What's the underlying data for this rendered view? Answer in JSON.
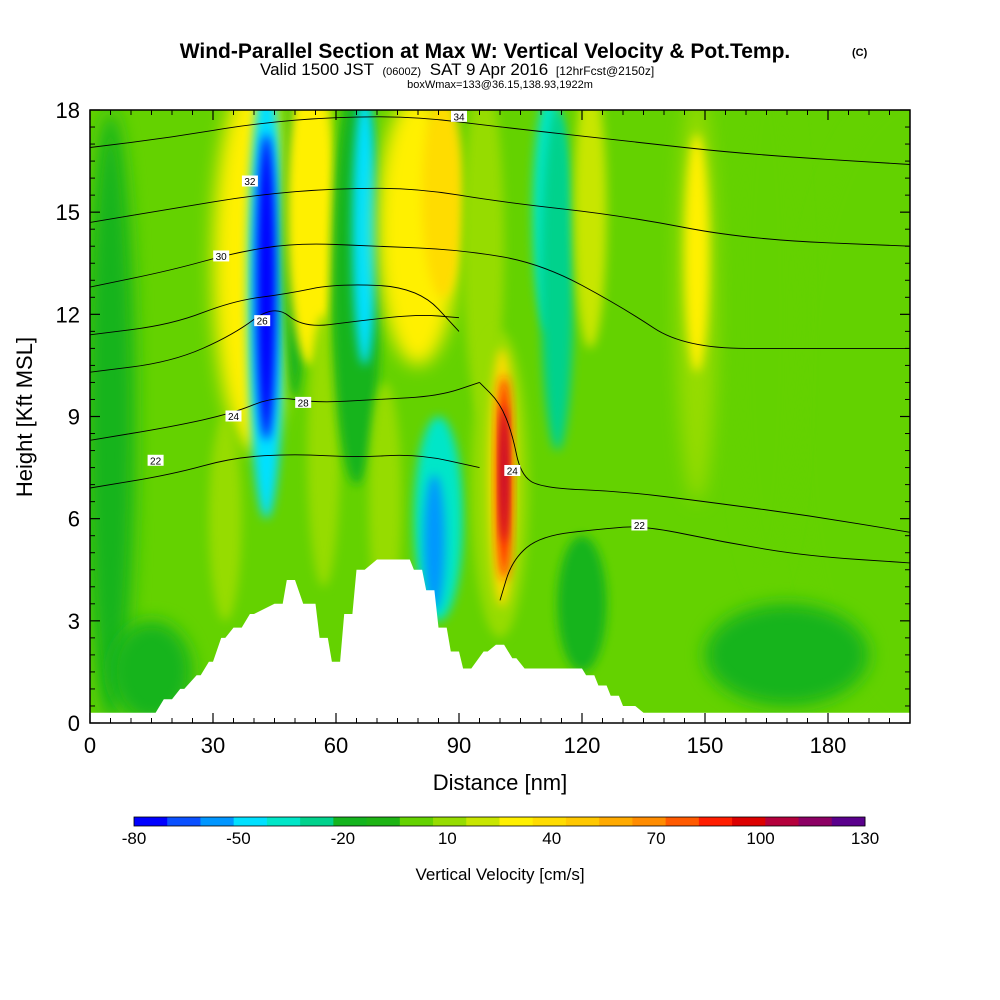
{
  "header": {
    "title": "Wind-Parallel Section at Max W: Vertical Velocity & Pot.Temp.",
    "title_mark": "(C)",
    "valid_prefix": "Valid 1500 JST",
    "valid_zulu": "(0600Z)",
    "valid_date": "SAT 9 Apr 2016",
    "forecast_note": "[12hrFcst@2150z]",
    "box_info": "boxWmax=133@36.15,138.93,1922m"
  },
  "chart_data": {
    "type": "heatmap",
    "xlabel": "Distance [nm]",
    "ylabel": "Height [Kft MSL]",
    "xlim": [
      0,
      200
    ],
    "ylim": [
      0,
      18
    ],
    "xticks": [
      0,
      30,
      60,
      90,
      120,
      150,
      180
    ],
    "yticks": [
      0,
      3,
      6,
      9,
      12,
      15,
      18
    ],
    "colorbar": {
      "label": "Vertical Velocity [cm/s]",
      "tick_labels": [
        "-80",
        "-50",
        "-20",
        "10",
        "40",
        "70",
        "100",
        "130"
      ],
      "levels": [
        -80,
        -70,
        -60,
        -50,
        -40,
        -30,
        -20,
        -10,
        0,
        10,
        20,
        30,
        40,
        50,
        60,
        70,
        80,
        90,
        100,
        110,
        120,
        130
      ],
      "colors": [
        "#0000ff",
        "#0a50ff",
        "#0096ff",
        "#00e0ff",
        "#00e6c8",
        "#00d28c",
        "#14b41e",
        "#1eb414",
        "#64d200",
        "#96dc00",
        "#c8e600",
        "#fff000",
        "#ffdc00",
        "#ffc800",
        "#ffaa00",
        "#ff8c00",
        "#ff5a00",
        "#ff1e00",
        "#dc0000",
        "#b4003c",
        "#8c0064",
        "#5a008c"
      ]
    },
    "field_features": [
      {
        "name": "downdraft",
        "x": 43,
        "y_range": [
          8,
          17.5
        ],
        "w_min": -80
      },
      {
        "name": "updraft",
        "x": 101,
        "y_range": [
          3.5,
          10.5
        ],
        "w_max": 133
      },
      {
        "name": "downdraft",
        "x": 85,
        "y_range": [
          3.5,
          8
        ],
        "w_min": -50
      },
      {
        "name": "downdraft",
        "x": 114,
        "y_range": [
          10,
          18
        ],
        "w_min": -40
      }
    ],
    "terrain_kft": {
      "x": [
        0,
        16,
        18,
        20,
        22,
        23,
        26,
        27,
        29,
        30,
        32,
        33,
        35,
        37,
        39,
        40,
        45,
        47,
        48,
        50,
        52,
        55,
        56,
        58,
        59,
        61,
        62,
        64,
        65,
        67,
        70,
        78,
        79,
        81,
        82,
        84,
        85,
        87,
        88,
        90,
        91,
        93,
        96,
        97,
        99,
        101,
        103,
        104,
        106,
        108,
        110,
        120,
        121,
        123,
        124,
        126,
        127,
        129,
        130,
        133,
        135,
        200
      ],
      "height": [
        0.3,
        0.3,
        0.7,
        0.7,
        1.0,
        1.0,
        1.4,
        1.4,
        1.8,
        1.8,
        2.5,
        2.5,
        2.8,
        2.8,
        3.2,
        3.2,
        3.5,
        3.5,
        4.2,
        4.2,
        3.5,
        3.5,
        2.5,
        2.5,
        1.8,
        1.8,
        3.2,
        3.2,
        4.5,
        4.5,
        4.8,
        4.8,
        4.5,
        4.5,
        3.9,
        3.9,
        2.8,
        2.8,
        2.1,
        2.1,
        1.6,
        1.6,
        2.1,
        2.1,
        2.3,
        2.3,
        1.9,
        1.9,
        1.6,
        1.6,
        1.6,
        1.6,
        1.4,
        1.4,
        1.1,
        1.1,
        0.8,
        0.8,
        0.5,
        0.5,
        0.3,
        0.3
      ]
    },
    "theta_contours": [
      {
        "label": "22",
        "pts": [
          [
            0,
            6.9
          ],
          [
            20,
            7.3
          ],
          [
            35,
            7.8
          ],
          [
            50,
            7.9
          ],
          [
            65,
            7.8
          ],
          [
            80,
            7.9
          ],
          [
            95,
            7.5
          ]
        ],
        "label_at": [
          16,
          7.7
        ]
      },
      {
        "label": "24",
        "pts": [
          [
            0,
            8.3
          ],
          [
            20,
            8.7
          ],
          [
            35,
            9.1
          ],
          [
            45,
            9.6
          ],
          [
            55,
            9.4
          ],
          [
            70,
            9.5
          ],
          [
            85,
            9.6
          ],
          [
            95,
            10.0
          ]
        ],
        "label_at": [
          35,
          9.0
        ]
      },
      {
        "label": "26",
        "pts": [
          [
            0,
            10.3
          ],
          [
            20,
            10.6
          ],
          [
            35,
            11.4
          ],
          [
            45,
            12.3
          ],
          [
            52,
            11.6
          ],
          [
            65,
            11.8
          ],
          [
            80,
            12.0
          ],
          [
            90,
            11.9
          ]
        ],
        "label_at": [
          42,
          11.8
        ]
      },
      {
        "label": "28",
        "pts": [
          [
            0,
            11.4
          ],
          [
            20,
            11.7
          ],
          [
            35,
            12.4
          ],
          [
            48,
            12.6
          ],
          [
            60,
            12.9
          ],
          [
            80,
            12.8
          ],
          [
            90,
            11.5
          ]
        ],
        "label_at": [
          52,
          9.4
        ]
      },
      {
        "label": "30",
        "pts": [
          [
            0,
            12.8
          ],
          [
            20,
            13.3
          ],
          [
            35,
            13.8
          ],
          [
            50,
            14.1
          ],
          [
            70,
            14.0
          ],
          [
            90,
            13.9
          ],
          [
            110,
            13.5
          ],
          [
            130,
            12.2
          ],
          [
            145,
            11.0
          ],
          [
            175,
            11.0
          ],
          [
            200,
            11.0
          ]
        ],
        "label_at": [
          32,
          13.7
        ]
      },
      {
        "label": "32",
        "pts": [
          [
            0,
            14.7
          ],
          [
            20,
            15.1
          ],
          [
            40,
            15.5
          ],
          [
            60,
            15.7
          ],
          [
            80,
            15.7
          ],
          [
            100,
            15.3
          ],
          [
            130,
            14.9
          ],
          [
            160,
            14.2
          ],
          [
            200,
            14.0
          ]
        ],
        "label_at": [
          39,
          15.9
        ]
      },
      {
        "label": "34",
        "pts": [
          [
            0,
            16.9
          ],
          [
            20,
            17.2
          ],
          [
            40,
            17.6
          ],
          [
            60,
            17.8
          ],
          [
            80,
            17.8
          ],
          [
            100,
            17.5
          ],
          [
            130,
            17.1
          ],
          [
            160,
            16.7
          ],
          [
            200,
            16.4
          ]
        ],
        "label_at": [
          90,
          17.8
        ]
      },
      {
        "label": "24",
        "pts": [
          [
            95,
            10.0
          ],
          [
            100,
            9.4
          ],
          [
            103,
            8.5
          ],
          [
            105,
            7.3
          ],
          [
            110,
            6.9
          ],
          [
            130,
            6.8
          ],
          [
            150,
            6.5
          ],
          [
            175,
            6.1
          ],
          [
            200,
            5.6
          ]
        ],
        "label_at": [
          103,
          7.4
        ]
      },
      {
        "label": "22",
        "pts": [
          [
            100,
            3.6
          ],
          [
            103,
            4.8
          ],
          [
            110,
            5.5
          ],
          [
            125,
            5.7
          ],
          [
            135,
            5.8
          ],
          [
            155,
            5.3
          ],
          [
            175,
            4.9
          ],
          [
            200,
            4.7
          ]
        ],
        "label_at": [
          134,
          5.8
        ]
      }
    ]
  }
}
